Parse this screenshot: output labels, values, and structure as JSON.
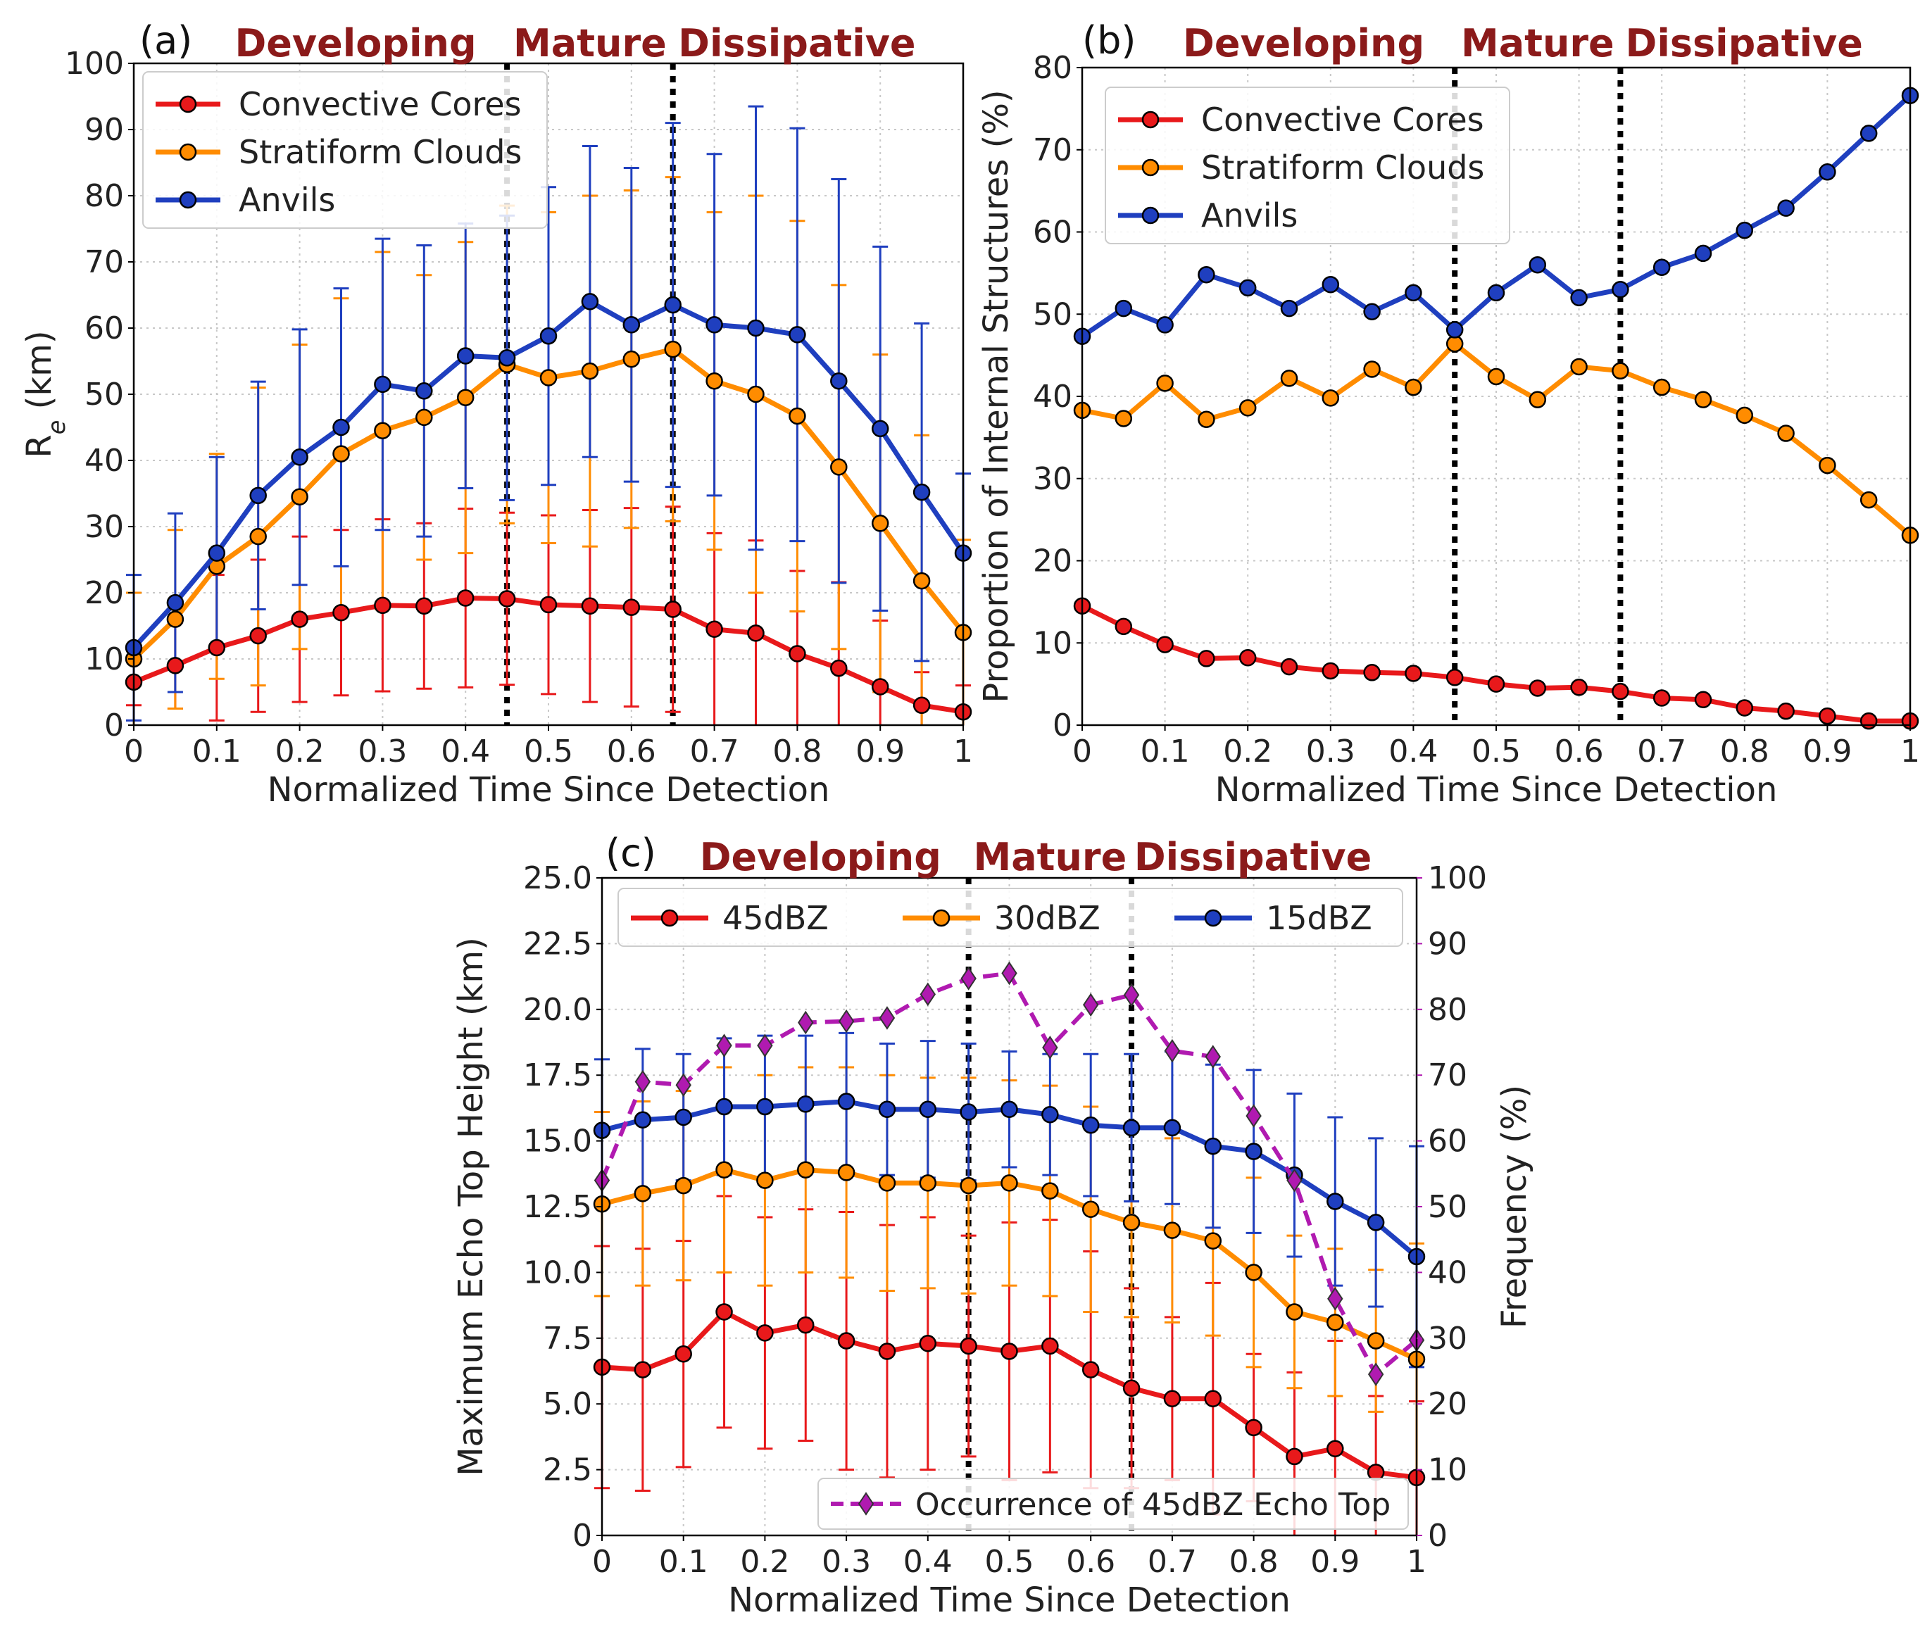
{
  "colors": {
    "convective": "#e8191b",
    "stratiform": "#ff8c00",
    "anvils": "#1f3fbf",
    "stage": "#8b1a1a",
    "occurrence": "#b01ab0"
  },
  "chart_data": [
    {
      "type": "line",
      "panel": "(a)",
      "stages": [
        "Developing",
        "Mature",
        "Dissipative"
      ],
      "stage_boundaries": [
        0.45,
        0.65
      ],
      "xlabel": "Normalized Time Since Detection",
      "ylabel": "R",
      "ylabel_sub": "e",
      "ylabel_unit": " (km)",
      "xlim": [
        0,
        1
      ],
      "ylim": [
        0,
        100
      ],
      "xticks": [
        0,
        0.1,
        0.2,
        0.3,
        0.4,
        0.5,
        0.6,
        0.7,
        0.8,
        0.9,
        1
      ],
      "xtick_labels": [
        "0",
        "0.1",
        "0.2",
        "0.3",
        "0.4",
        "0.5",
        "0.6",
        "0.7",
        "0.8",
        "0.9",
        "1"
      ],
      "yticks": [
        0,
        10,
        20,
        30,
        40,
        50,
        60,
        70,
        80,
        90,
        100
      ],
      "ytick_labels": [
        "0",
        "10",
        "20",
        "30",
        "40",
        "50",
        "60",
        "70",
        "80",
        "90",
        "100"
      ],
      "legend": "top-left",
      "x": [
        0,
        0.05,
        0.1,
        0.15,
        0.2,
        0.25,
        0.3,
        0.35,
        0.4,
        0.45,
        0.5,
        0.55,
        0.6,
        0.65,
        0.7,
        0.75,
        0.8,
        0.85,
        0.9,
        0.95,
        1
      ],
      "series": [
        {
          "name": "Convective Cores",
          "color_key": "convective",
          "values": [
            6.5,
            9,
            11.7,
            13.5,
            16,
            17,
            18.1,
            18,
            19.2,
            19.1,
            18.2,
            18,
            17.8,
            17.5,
            14.5,
            13.9,
            10.8,
            8.6,
            5.8,
            3,
            2
          ],
          "err": [
            3.5,
            6.5,
            11,
            11.5,
            12.5,
            12.5,
            13,
            12.5,
            13.5,
            13,
            13.5,
            14.5,
            15,
            15.5,
            14.5,
            14,
            12.5,
            13,
            10,
            5,
            4
          ]
        },
        {
          "name": "Stratiform Clouds",
          "color_key": "stratiform",
          "values": [
            10,
            16,
            24,
            28.5,
            34.5,
            41,
            44.5,
            46.5,
            49.5,
            54.5,
            52.5,
            53.5,
            55.3,
            56.8,
            52,
            50,
            46.7,
            39,
            30.5,
            21.8,
            14
          ],
          "err": [
            10,
            13.5,
            17,
            22.5,
            23,
            23.5,
            27,
            21.5,
            23.5,
            24,
            25,
            26.5,
            25.5,
            26,
            25.5,
            30,
            29.5,
            27.5,
            25.5,
            22,
            14
          ]
        },
        {
          "name": "Anvils",
          "color_key": "anvils",
          "values": [
            11.7,
            18.5,
            26,
            34.7,
            40.5,
            45,
            51.5,
            50.5,
            55.8,
            55.5,
            58.8,
            64,
            60.5,
            63.5,
            60.5,
            60,
            59,
            52,
            44.8,
            35.2,
            26
          ],
          "err": [
            11,
            13.5,
            14.5,
            17.2,
            19.3,
            21,
            22,
            22,
            20,
            21.5,
            22.5,
            23.5,
            23.7,
            27.5,
            25.8,
            33.5,
            31.2,
            30.5,
            27.5,
            25.5,
            12
          ]
        }
      ]
    },
    {
      "type": "line",
      "panel": "(b)",
      "stages": [
        "Developing",
        "Mature",
        "Dissipative"
      ],
      "stage_boundaries": [
        0.45,
        0.65
      ],
      "xlabel": "Normalized Time Since Detection",
      "ylabel": "Proportion of Internal Structures (%)",
      "xlim": [
        0,
        1
      ],
      "ylim": [
        0,
        80
      ],
      "xticks": [
        0,
        0.1,
        0.2,
        0.3,
        0.4,
        0.5,
        0.6,
        0.7,
        0.8,
        0.9,
        1
      ],
      "xtick_labels": [
        "0",
        "0.1",
        "0.2",
        "0.3",
        "0.4",
        "0.5",
        "0.6",
        "0.7",
        "0.8",
        "0.9",
        "1"
      ],
      "yticks": [
        0,
        10,
        20,
        30,
        40,
        50,
        60,
        70,
        80
      ],
      "ytick_labels": [
        "0",
        "10",
        "20",
        "30",
        "40",
        "50",
        "60",
        "70",
        "80"
      ],
      "legend": "top-left",
      "x": [
        0,
        0.05,
        0.1,
        0.15,
        0.2,
        0.25,
        0.3,
        0.35,
        0.4,
        0.45,
        0.5,
        0.55,
        0.6,
        0.65,
        0.7,
        0.75,
        0.8,
        0.85,
        0.9,
        0.95,
        1
      ],
      "series": [
        {
          "name": "Convective Cores",
          "color_key": "convective",
          "values": [
            14.5,
            12,
            9.8,
            8.1,
            8.2,
            7.1,
            6.6,
            6.4,
            6.3,
            5.8,
            5,
            4.5,
            4.6,
            4.1,
            3.3,
            3.1,
            2.1,
            1.7,
            1.1,
            0.5,
            0.5
          ]
        },
        {
          "name": "Stratiform Clouds",
          "color_key": "stratiform",
          "values": [
            38.3,
            37.3,
            41.6,
            37.2,
            38.6,
            42.2,
            39.8,
            43.3,
            41.1,
            46.4,
            42.4,
            39.6,
            43.6,
            43.1,
            41.1,
            39.6,
            37.7,
            35.5,
            31.6,
            27.4,
            23.1
          ]
        },
        {
          "name": "Anvils",
          "color_key": "anvils",
          "values": [
            47.3,
            50.7,
            48.7,
            54.8,
            53.2,
            50.7,
            53.6,
            50.3,
            52.6,
            48.1,
            52.6,
            56,
            52,
            53,
            55.7,
            57.4,
            60.2,
            62.9,
            67.3,
            72,
            76.6
          ]
        }
      ]
    },
    {
      "type": "line",
      "panel": "(c)",
      "stages": [
        "Developing",
        "Mature",
        "Dissipative"
      ],
      "stage_boundaries": [
        0.45,
        0.65
      ],
      "xlabel": "Normalized Time Since Detection",
      "ylabel": "Maximum Echo Top Height (km)",
      "ylabel_right": "Frequency (%)",
      "xlim": [
        0,
        1
      ],
      "ylim": [
        0,
        25
      ],
      "ylim_right": [
        0,
        100
      ],
      "xticks": [
        0,
        0.1,
        0.2,
        0.3,
        0.4,
        0.5,
        0.6,
        0.7,
        0.8,
        0.9,
        1
      ],
      "xtick_labels": [
        "0",
        "0.1",
        "0.2",
        "0.3",
        "0.4",
        "0.5",
        "0.6",
        "0.7",
        "0.8",
        "0.9",
        "1"
      ],
      "yticks": [
        0,
        2.5,
        5,
        7.5,
        10,
        12.5,
        15,
        17.5,
        20,
        22.5,
        25
      ],
      "ytick_labels": [
        "0",
        "2.5",
        "5.0",
        "7.5",
        "10.0",
        "12.5",
        "15.0",
        "17.5",
        "20.0",
        "22.5",
        "25.0"
      ],
      "yticks_right": [
        0,
        10,
        20,
        30,
        40,
        50,
        60,
        70,
        80,
        90,
        100
      ],
      "ytick_labels_right": [
        "0",
        "10",
        "20",
        "30",
        "40",
        "50",
        "60",
        "70",
        "80",
        "90",
        "100"
      ],
      "legend": "top (horizontal)",
      "legend2": "bottom-right",
      "x": [
        0,
        0.05,
        0.1,
        0.15,
        0.2,
        0.25,
        0.3,
        0.35,
        0.4,
        0.45,
        0.5,
        0.55,
        0.6,
        0.65,
        0.7,
        0.75,
        0.8,
        0.85,
        0.9,
        0.95,
        1
      ],
      "series": [
        {
          "name": "45dBZ",
          "color_key": "convective",
          "values": [
            6.4,
            6.3,
            6.9,
            8.5,
            7.7,
            8.0,
            7.4,
            7.0,
            7.3,
            7.2,
            7.0,
            7.2,
            6.3,
            5.6,
            5.2,
            5.2,
            4.1,
            3.0,
            3.3,
            2.4,
            2.2
          ],
          "err": [
            4.6,
            4.6,
            4.3,
            4.4,
            4.4,
            4.4,
            4.9,
            4.8,
            4.8,
            4.2,
            4.9,
            4.8,
            4.5,
            3.8,
            3.1,
            4.4,
            2.8,
            3.2,
            4.1,
            2.9,
            2.9
          ]
        },
        {
          "name": "30dBZ",
          "color_key": "stratiform",
          "values": [
            12.6,
            13.0,
            13.3,
            13.9,
            13.5,
            13.9,
            13.8,
            13.4,
            13.4,
            13.3,
            13.4,
            13.1,
            12.4,
            11.9,
            11.6,
            11.2,
            10.0,
            8.5,
            8.1,
            7.4,
            6.7
          ],
          "err": [
            3.5,
            3.5,
            3.6,
            3.9,
            4.0,
            3.9,
            4.0,
            4.1,
            4.0,
            4.1,
            3.9,
            4.0,
            3.9,
            3.6,
            3.5,
            3.6,
            3.6,
            2.9,
            2.8,
            2.7,
            4.4
          ]
        },
        {
          "name": "15dBZ",
          "color_key": "anvils",
          "values": [
            15.4,
            15.8,
            15.9,
            16.3,
            16.3,
            16.4,
            16.5,
            16.2,
            16.2,
            16.1,
            16.2,
            16.0,
            15.6,
            15.5,
            15.5,
            14.8,
            14.6,
            13.7,
            12.7,
            11.9,
            10.6
          ],
          "err": [
            2.7,
            2.7,
            2.4,
            2.6,
            2.7,
            2.6,
            2.6,
            2.5,
            2.6,
            2.6,
            2.2,
            2.3,
            2.7,
            2.8,
            2.9,
            3.1,
            3.1,
            3.1,
            3.2,
            3.2,
            4.2
          ]
        }
      ],
      "secondary_series": [
        {
          "name": "Occurrence of 45dBZ Echo Top",
          "color_key": "occurrence",
          "values": [
            54,
            69,
            68.5,
            74.5,
            74.5,
            78,
            78.2,
            78.7,
            82.3,
            84.7,
            85.5,
            74.2,
            80.7,
            82.2,
            73.7,
            72.8,
            63.8,
            54,
            36,
            24.5,
            29.7
          ]
        }
      ]
    }
  ]
}
